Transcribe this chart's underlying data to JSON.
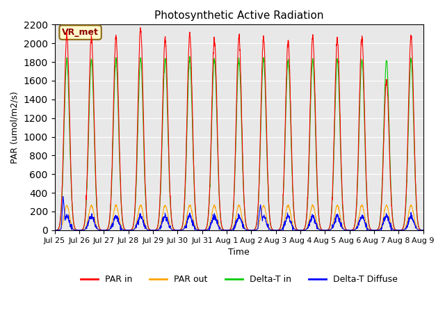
{
  "title": "Photosynthetic Active Radiation",
  "ylabel": "PAR (umol/m2/s)",
  "xlabel": "Time",
  "ylim": [
    0,
    2200
  ],
  "annotation_text": "VR_met",
  "annotation_color": "#8B0000",
  "annotation_bg": "#FFFACD",
  "annotation_border": "#8B6914",
  "background_color": "#E8E8E8",
  "series": {
    "par_in_color": "#FF0000",
    "par_out_color": "#FFA500",
    "delta_t_in_color": "#00CC00",
    "delta_t_diffuse_color": "#0000FF"
  },
  "legend": [
    "PAR in",
    "PAR out",
    "Delta-T in",
    "Delta-T Diffuse"
  ],
  "tick_labels": [
    "Jul 25",
    "Jul 26",
    "Jul 27",
    "Jul 28",
    "Jul 29",
    "Jul 30",
    "Jul 31",
    "Aug 1",
    "Aug 2",
    "Aug 3",
    "Aug 4",
    "Aug 5",
    "Aug 6",
    "Aug 7",
    "Aug 8",
    "Aug 9"
  ],
  "n_days": 15,
  "peak_values_par_in": [
    2080,
    2060,
    2060,
    2150,
    2060,
    2090,
    2050,
    2070,
    2050,
    2030,
    2060,
    2050,
    2060,
    1600,
    2070
  ],
  "peak_values_par_out": [
    265,
    265,
    265,
    265,
    265,
    265,
    265,
    265,
    265,
    265,
    265,
    265,
    265,
    265,
    265
  ],
  "peak_values_delta_t": [
    1820,
    1820,
    1820,
    1840,
    1830,
    1830,
    1830,
    1830,
    1830,
    1820,
    1820,
    1820,
    1820,
    1820,
    1820
  ],
  "points_per_day": 144
}
